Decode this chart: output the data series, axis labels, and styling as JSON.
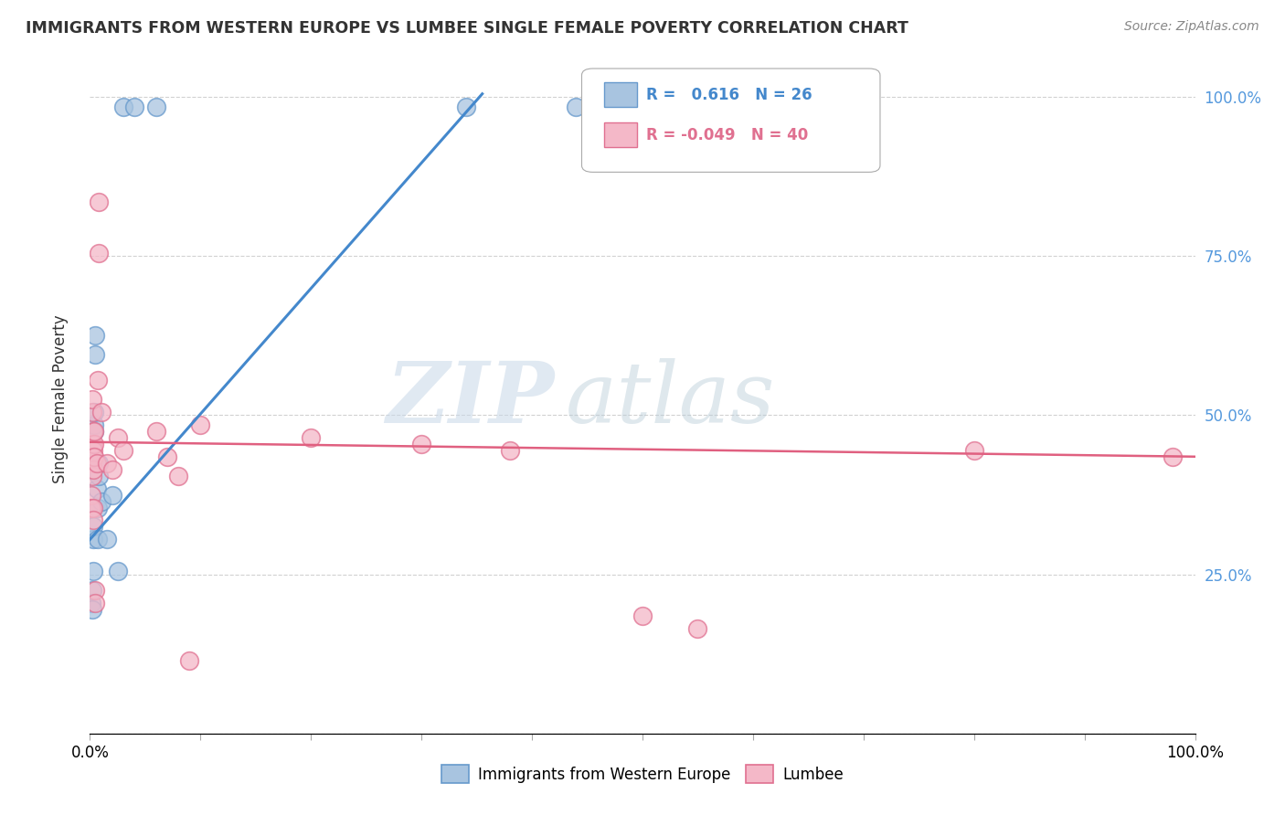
{
  "title": "IMMIGRANTS FROM WESTERN EUROPE VS LUMBEE SINGLE FEMALE POVERTY CORRELATION CHART",
  "source": "Source: ZipAtlas.com",
  "ylabel": "Single Female Poverty",
  "legend_blue_R": "0.616",
  "legend_blue_N": "26",
  "legend_pink_R": "-0.049",
  "legend_pink_N": "40",
  "legend_blue_label": "Immigrants from Western Europe",
  "legend_pink_label": "Lumbee",
  "blue_scatter": [
    [
      0.001,
      0.205
    ],
    [
      0.002,
      0.195
    ],
    [
      0.002,
      0.225
    ],
    [
      0.003,
      0.255
    ],
    [
      0.003,
      0.305
    ],
    [
      0.003,
      0.325
    ],
    [
      0.004,
      0.475
    ],
    [
      0.004,
      0.485
    ],
    [
      0.004,
      0.505
    ],
    [
      0.005,
      0.595
    ],
    [
      0.005,
      0.625
    ],
    [
      0.006,
      0.385
    ],
    [
      0.006,
      0.425
    ],
    [
      0.007,
      0.305
    ],
    [
      0.007,
      0.355
    ],
    [
      0.008,
      0.405
    ],
    [
      0.008,
      0.425
    ],
    [
      0.01,
      0.365
    ],
    [
      0.015,
      0.305
    ],
    [
      0.02,
      0.375
    ],
    [
      0.025,
      0.255
    ],
    [
      0.03,
      0.985
    ],
    [
      0.04,
      0.985
    ],
    [
      0.06,
      0.985
    ],
    [
      0.34,
      0.985
    ],
    [
      0.44,
      0.985
    ]
  ],
  "pink_scatter": [
    [
      0.001,
      0.435
    ],
    [
      0.001,
      0.375
    ],
    [
      0.001,
      0.355
    ],
    [
      0.002,
      0.425
    ],
    [
      0.002,
      0.405
    ],
    [
      0.002,
      0.455
    ],
    [
      0.002,
      0.505
    ],
    [
      0.002,
      0.525
    ],
    [
      0.003,
      0.475
    ],
    [
      0.003,
      0.445
    ],
    [
      0.003,
      0.435
    ],
    [
      0.003,
      0.415
    ],
    [
      0.003,
      0.355
    ],
    [
      0.003,
      0.335
    ],
    [
      0.004,
      0.455
    ],
    [
      0.004,
      0.475
    ],
    [
      0.004,
      0.435
    ],
    [
      0.005,
      0.225
    ],
    [
      0.005,
      0.205
    ],
    [
      0.006,
      0.425
    ],
    [
      0.007,
      0.555
    ],
    [
      0.008,
      0.835
    ],
    [
      0.008,
      0.755
    ],
    [
      0.01,
      0.505
    ],
    [
      0.015,
      0.425
    ],
    [
      0.02,
      0.415
    ],
    [
      0.025,
      0.465
    ],
    [
      0.03,
      0.445
    ],
    [
      0.06,
      0.475
    ],
    [
      0.07,
      0.435
    ],
    [
      0.08,
      0.405
    ],
    [
      0.09,
      0.115
    ],
    [
      0.1,
      0.485
    ],
    [
      0.2,
      0.465
    ],
    [
      0.3,
      0.455
    ],
    [
      0.38,
      0.445
    ],
    [
      0.5,
      0.185
    ],
    [
      0.55,
      0.165
    ],
    [
      0.8,
      0.445
    ],
    [
      0.98,
      0.435
    ]
  ],
  "blue_line_x": [
    -0.005,
    0.355
  ],
  "blue_line_y": [
    0.295,
    1.005
  ],
  "pink_line_x": [
    0.0,
    1.0
  ],
  "pink_line_y": [
    0.458,
    0.435
  ],
  "xlim": [
    0.0,
    1.0
  ],
  "ylim": [
    0.0,
    1.05
  ],
  "watermark_zip": "ZIP",
  "watermark_atlas": "atlas",
  "background_color": "#ffffff",
  "blue_color": "#a8c4e0",
  "blue_edge_color": "#6699cc",
  "pink_color": "#f4b8c8",
  "pink_edge_color": "#e07090",
  "blue_line_color": "#4488cc",
  "pink_line_color": "#e06080",
  "grid_color": "#cccccc",
  "right_axis_color": "#5599dd",
  "title_color": "#333333"
}
